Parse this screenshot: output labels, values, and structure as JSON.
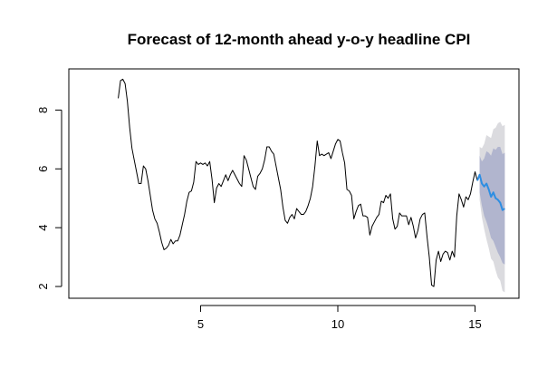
{
  "chart_data": {
    "type": "line",
    "title": "Forecast of 12-month ahead y-o-y headline CPI",
    "xlabel": "",
    "ylabel": "",
    "xlim": [
      0.2,
      16.6
    ],
    "ylim": [
      1.6,
      9.4
    ],
    "x_ticks": [
      5,
      10,
      15
    ],
    "y_ticks": [
      2,
      4,
      6,
      8
    ],
    "x_tick_labels": [
      "5",
      "10",
      "15"
    ],
    "y_tick_labels": [
      "2",
      "4",
      "6",
      "8"
    ],
    "grid": false,
    "legend": "none",
    "series": [
      {
        "x": [
          2.0,
          2.083,
          2.167,
          2.25,
          2.333,
          2.417,
          2.5,
          2.583,
          2.667,
          2.75,
          2.833,
          2.917,
          3.0,
          3.083,
          3.167,
          3.25,
          3.333,
          3.417,
          3.5,
          3.583,
          3.667,
          3.75,
          3.833,
          3.917,
          4.0,
          4.083,
          4.167,
          4.25,
          4.333,
          4.417,
          4.5,
          4.583,
          4.667,
          4.75,
          4.833,
          4.917,
          5.0,
          5.083,
          5.167,
          5.25,
          5.333,
          5.417,
          5.5,
          5.583,
          5.667,
          5.75,
          5.833,
          5.917,
          6.0,
          6.083,
          6.167,
          6.25,
          6.333,
          6.417,
          6.5,
          6.583,
          6.667,
          6.75,
          6.833,
          6.917,
          7.0,
          7.083,
          7.167,
          7.25,
          7.333,
          7.417,
          7.5,
          7.583,
          7.667,
          7.75,
          7.833,
          7.917,
          8.0,
          8.083,
          8.167,
          8.25,
          8.333,
          8.417,
          8.5,
          8.583,
          8.667,
          8.75,
          8.833,
          8.917,
          9.0,
          9.083,
          9.167,
          9.25,
          9.333,
          9.417,
          9.5,
          9.583,
          9.667,
          9.75,
          9.833,
          9.917,
          10.0,
          10.083,
          10.167,
          10.25,
          10.333,
          10.417,
          10.5,
          10.583,
          10.667,
          10.75,
          10.833,
          10.917,
          11.0,
          11.083,
          11.167,
          11.25,
          11.333,
          11.417,
          11.5,
          11.583,
          11.667,
          11.75,
          11.833,
          11.917,
          12.0,
          12.083,
          12.167,
          12.25,
          12.333,
          12.417,
          12.5,
          12.583,
          12.667,
          12.75,
          12.833,
          12.917,
          13.0,
          13.083,
          13.167,
          13.25,
          13.333,
          13.417,
          13.5,
          13.583,
          13.667,
          13.75,
          13.833,
          13.917,
          14.0,
          14.083,
          14.167,
          14.25,
          14.333,
          14.417,
          14.5,
          14.583,
          14.667,
          14.75,
          14.833,
          14.917,
          15.0,
          15.083
        ],
        "values": [
          8.4,
          9.0,
          9.05,
          8.9,
          8.3,
          7.4,
          6.7,
          6.3,
          5.9,
          5.5,
          5.5,
          6.1,
          6.0,
          5.6,
          5.1,
          4.6,
          4.3,
          4.15,
          3.85,
          3.5,
          3.25,
          3.3,
          3.4,
          3.6,
          3.45,
          3.55,
          3.55,
          3.75,
          4.1,
          4.45,
          4.9,
          5.2,
          5.25,
          5.55,
          6.25,
          6.15,
          6.2,
          6.15,
          6.2,
          6.1,
          6.25,
          5.65,
          4.85,
          5.35,
          5.5,
          5.4,
          5.6,
          5.8,
          5.6,
          5.8,
          5.95,
          5.8,
          5.65,
          5.5,
          5.4,
          6.45,
          6.3,
          6.0,
          5.7,
          5.4,
          5.3,
          5.75,
          5.85,
          6.0,
          6.3,
          6.75,
          6.75,
          6.6,
          6.5,
          6.1,
          5.7,
          5.3,
          4.7,
          4.25,
          4.15,
          4.35,
          4.45,
          4.3,
          4.65,
          4.55,
          4.45,
          4.45,
          4.55,
          4.75,
          5.0,
          5.4,
          6.1,
          6.95,
          6.45,
          6.5,
          6.45,
          6.5,
          6.55,
          6.35,
          6.6,
          6.85,
          7.0,
          6.95,
          6.55,
          6.2,
          5.3,
          5.25,
          5.1,
          4.3,
          4.55,
          4.75,
          4.8,
          4.4,
          4.4,
          4.35,
          3.75,
          4.05,
          4.2,
          4.35,
          4.45,
          4.9,
          4.85,
          5.1,
          5.0,
          5.15,
          4.3,
          3.95,
          4.05,
          4.5,
          4.4,
          4.4,
          4.4,
          4.1,
          4.35,
          4.05,
          3.65,
          3.9,
          4.3,
          4.45,
          4.5,
          3.7,
          3.0,
          2.05,
          2.0,
          2.9,
          3.2,
          2.85,
          3.1,
          3.2,
          3.15,
          2.9,
          3.2,
          3.0,
          4.4,
          5.15,
          4.95,
          4.7,
          5.05,
          4.95,
          5.15,
          5.55,
          5.9,
          5.6
        ],
        "color": "#000000"
      },
      {
        "name": "Forecast",
        "x": [
          15.167,
          15.25,
          15.333,
          15.417,
          15.5,
          15.583,
          15.667,
          15.75,
          15.833,
          15.917,
          16.0,
          16.083
        ],
        "values": [
          5.8,
          5.5,
          5.4,
          5.5,
          5.3,
          5.05,
          5.2,
          5.0,
          4.95,
          4.85,
          4.6,
          4.65
        ],
        "color": "#2e8ee2",
        "lo80": [
          5.2,
          4.75,
          4.4,
          4.2,
          3.95,
          3.65,
          3.55,
          3.35,
          3.15,
          3.0,
          2.8,
          2.75
        ],
        "hi80": [
          6.45,
          6.25,
          6.35,
          6.6,
          6.55,
          6.45,
          6.7,
          6.65,
          6.75,
          6.75,
          6.5,
          6.55
        ],
        "lo95": [
          4.95,
          4.35,
          3.95,
          3.6,
          3.3,
          2.95,
          2.85,
          2.55,
          2.3,
          2.2,
          1.85,
          1.8
        ],
        "hi95": [
          6.75,
          6.7,
          6.85,
          7.15,
          7.1,
          7.05,
          7.35,
          7.4,
          7.55,
          7.6,
          7.45,
          7.5
        ],
        "band80_color": "#b1b5ce",
        "band95_color": "#dbdbdf"
      }
    ]
  }
}
